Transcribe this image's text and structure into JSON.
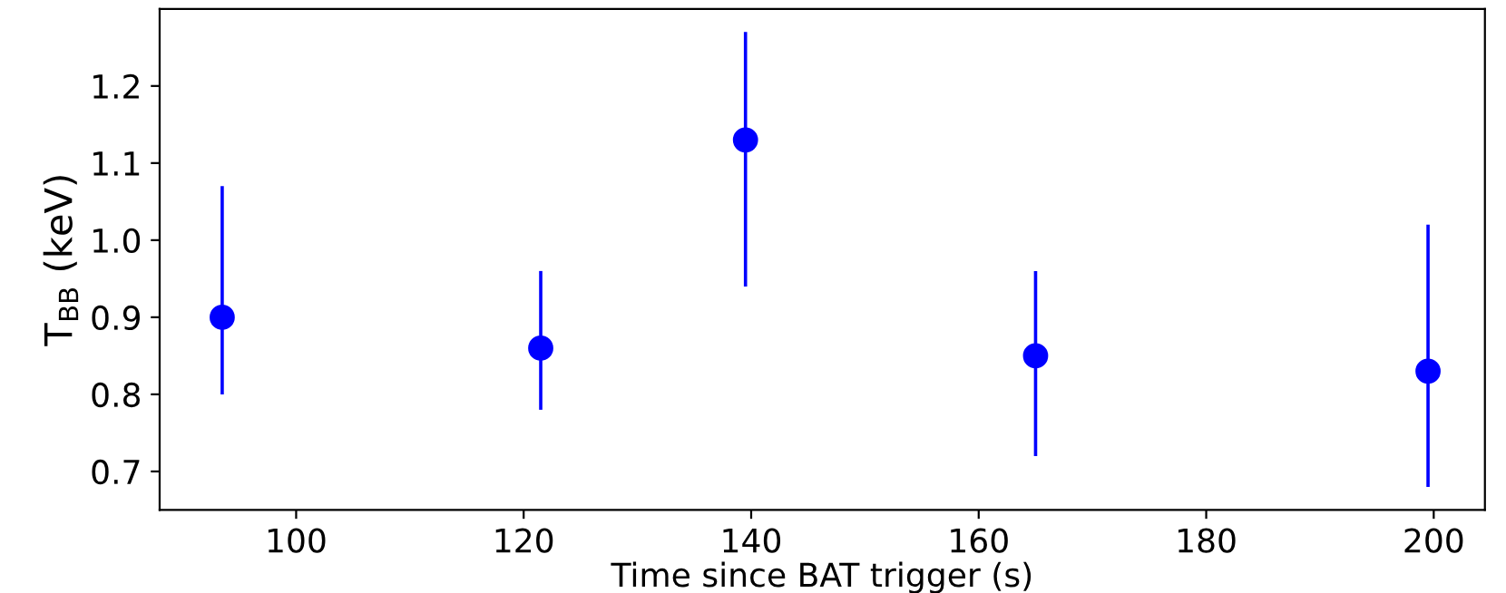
{
  "chart_data": {
    "type": "scatter",
    "xlabel": "Time since BAT trigger (s)",
    "ylabel": "T$_{BB}$ (keV)",
    "x": [
      93.5,
      121.5,
      139.5,
      165,
      199.5
    ],
    "series": [
      {
        "color": "#0000ff",
        "values": [
          0.9,
          0.86,
          1.13,
          0.85,
          0.83
        ],
        "errors": [
          [
            0.8,
            1.07
          ],
          [
            0.78,
            0.96
          ],
          [
            0.94,
            1.27
          ],
          [
            0.72,
            0.96
          ],
          [
            0.68,
            1.02
          ]
        ]
      }
    ],
    "xlim": [
      88,
      204.5
    ],
    "ylim": [
      0.65,
      1.3
    ],
    "xticks": [
      100,
      120,
      140,
      160,
      180,
      200
    ],
    "yticks": [
      0.7,
      0.8,
      0.9,
      {
        "value": 1.0,
        "label": "1.0"
      },
      1.1,
      1.2
    ],
    "marker": "circle",
    "grid": false
  }
}
